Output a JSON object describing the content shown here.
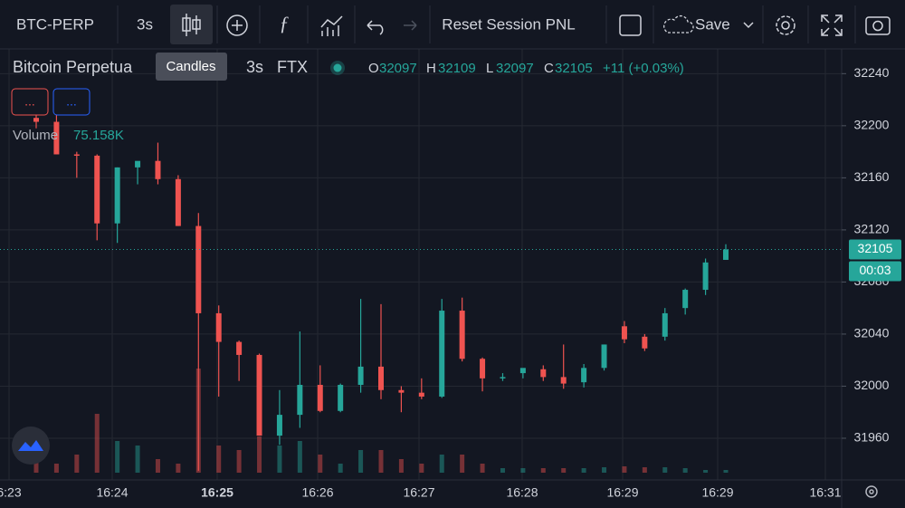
{
  "toolbar": {
    "symbol": "BTC-PERP",
    "interval": "3s",
    "reset": "Reset Session PNL",
    "save": "Save",
    "tooltip": "Candles"
  },
  "legend": {
    "title": "Bitcoin Perpetua",
    "interval": "3s",
    "exchange": "FTX",
    "o_label": "O",
    "o": "32097",
    "h_label": "H",
    "h": "32109",
    "l_label": "L",
    "l": "32097",
    "c_label": "C",
    "c": "32105",
    "change": "+11 (+0.03%)",
    "volume_label": "Volume",
    "volume": "75.158K",
    "ind1": "...",
    "ind2": "..."
  },
  "countdown": "00:03",
  "chart_data": {
    "type": "candlestick",
    "open": [
      32206,
      32203,
      32178,
      32177,
      32125,
      32168,
      32173,
      32159,
      32123,
      32056,
      32034,
      32024,
      31962,
      31978,
      32001,
      31981,
      32001,
      32015,
      31997,
      31995,
      31992,
      32058,
      32021,
      32006,
      32010,
      32013,
      32007,
      32003,
      32014,
      32046,
      32038,
      32038,
      32060,
      32074,
      32097
    ],
    "high": [
      32210,
      32210,
      32180,
      32178,
      32168,
      32172,
      32187,
      32162,
      32133,
      32062,
      32035,
      32025,
      31997,
      32042,
      32016,
      32002,
      32067,
      32063,
      32000,
      32006,
      32067,
      32068,
      32022,
      32010,
      32013,
      32016,
      32032,
      32017,
      32032,
      32050,
      32040,
      32060,
      32075,
      32098,
      32109
    ],
    "low": [
      32198,
      32178,
      32160,
      32112,
      32110,
      32155,
      32155,
      32123,
      31935,
      31992,
      32004,
      31962,
      31955,
      31968,
      31980,
      31980,
      31995,
      31990,
      31980,
      31990,
      31991,
      32019,
      31996,
      32004,
      32006,
      32004,
      31998,
      31999,
      32012,
      32033,
      32027,
      32035,
      32055,
      32070,
      32097
    ],
    "close": [
      32203,
      32178,
      32177,
      32125,
      32168,
      32173,
      32159,
      32123,
      32056,
      32034,
      32024,
      31962,
      31978,
      32001,
      31981,
      32001,
      32015,
      31997,
      31995,
      31992,
      32058,
      32021,
      32006,
      32007,
      32014,
      32007,
      32002,
      32014,
      32032,
      32036,
      32029,
      32056,
      32074,
      32095,
      32105
    ],
    "volumes": [
      500,
      250,
      500,
      1625,
      875,
      750,
      375,
      250,
      2875,
      750,
      625,
      1000,
      750,
      875,
      500,
      250,
      625,
      625,
      375,
      250,
      500,
      500,
      250,
      125,
      125,
      125,
      125,
      125,
      150,
      175,
      150,
      150,
      125,
      75.158,
      75.158
    ],
    "up_color": "#26a69a",
    "down_color": "#ef5350",
    "ylim": [
      31928,
      32259
    ],
    "yticks": [
      31960,
      32000,
      32040,
      32080,
      32120,
      32160,
      32200,
      32240
    ],
    "xtick_labels": [
      "6:23",
      "16:24",
      "16:25",
      "16:26",
      "16:27",
      "16:28",
      "16:29",
      "16:29",
      "16:31"
    ],
    "last_price": "32105",
    "grid": true
  }
}
